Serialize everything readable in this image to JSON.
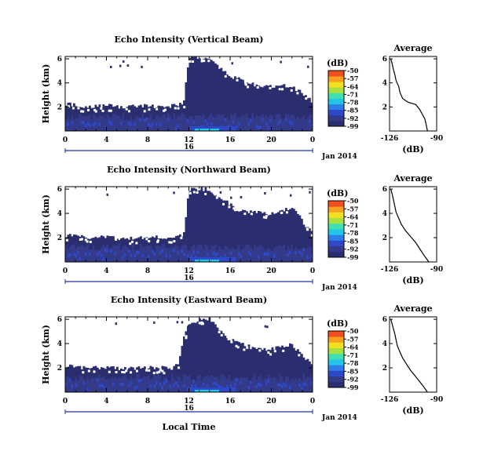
{
  "colors": {
    "background": "#ffffff",
    "axis": "#000000",
    "date_axis": "#2030a0",
    "colormap": [
      "#2a2e6e",
      "#343a8a",
      "#2f48c8",
      "#2e7ee8",
      "#22c6e8",
      "#40e0b0",
      "#a8e040",
      "#f0e020",
      "#f8a020",
      "#f05020"
    ]
  },
  "chart_data": [
    {
      "type": "heatmap",
      "title": "Echo Intensity (Vertical Beam)",
      "ylabel": "Height (km)",
      "xticks": [
        "0",
        "4",
        "8",
        "12",
        "16",
        "20",
        "0"
      ],
      "yticks": [
        "6",
        "4",
        "2"
      ],
      "xlim": [
        0,
        24
      ],
      "ylim": [
        0,
        6.2
      ],
      "date_label": "16",
      "month_label": "Jan 2014",
      "colorbar_unit": "(dB)",
      "colorbar_ticks": [
        "-50",
        "-57",
        "-64",
        "-71",
        "-78",
        "-85",
        "-92",
        "-99"
      ],
      "clim": [
        -99,
        -50
      ],
      "cloud_edge": {
        "t": [
          0,
          2,
          4,
          6,
          8,
          10,
          11.5,
          12,
          14,
          16,
          18,
          20,
          22,
          24
        ],
        "h": [
          2.3,
          2.0,
          2.1,
          2.0,
          2.1,
          2.0,
          2.3,
          6.0,
          6.0,
          4.6,
          3.9,
          3.7,
          3.8,
          2.4
        ]
      },
      "profile": {
        "title": "Average",
        "xlabel": "(dB)",
        "xticks": [
          "-126",
          "-90"
        ],
        "yticks": [
          "6",
          "4",
          "2"
        ],
        "xlim": [
          -126,
          -90
        ],
        "ylim": [
          0,
          6.2
        ],
        "x": [
          -125,
          -124,
          -123,
          -122,
          -121,
          -119,
          -118,
          -116,
          -112,
          -106,
          -103,
          -101,
          -99,
          -98,
          -97
        ],
        "y": [
          6.0,
          5.6,
          5.1,
          4.7,
          4.2,
          3.7,
          3.2,
          2.7,
          2.4,
          2.2,
          1.8,
          1.4,
          1.0,
          0.5,
          0.0
        ]
      }
    },
    {
      "type": "heatmap",
      "title": "Echo Intensity (Northward Beam)",
      "ylabel": "Height (km)",
      "xticks": [
        "0",
        "4",
        "8",
        "12",
        "16",
        "20",
        "0"
      ],
      "yticks": [
        "6",
        "4",
        "2"
      ],
      "xlim": [
        0,
        24
      ],
      "ylim": [
        0,
        6.2
      ],
      "date_label": "16",
      "month_label": "Jan 2014",
      "colorbar_unit": "(dB)",
      "colorbar_ticks": [
        "-50",
        "-57",
        "-64",
        "-71",
        "-78",
        "-85",
        "-92",
        "-99"
      ],
      "clim": [
        -99,
        -50
      ],
      "cloud_edge": {
        "t": [
          0,
          2,
          4,
          6,
          8,
          10,
          11.5,
          12,
          14,
          16,
          17,
          18,
          20,
          22,
          24
        ],
        "h": [
          2.2,
          2.0,
          2.1,
          1.9,
          2.1,
          2.0,
          2.2,
          6.0,
          6.0,
          4.7,
          4.2,
          4.1,
          4.0,
          4.5,
          2.3
        ]
      },
      "profile": {
        "title": "Average",
        "xlabel": "(dB)",
        "xticks": [
          "-126",
          "-90"
        ],
        "yticks": [
          "6",
          "4",
          "2"
        ],
        "xlim": [
          -126,
          -90
        ],
        "ylim": [
          0,
          6.2
        ],
        "x": [
          -125,
          -124,
          -123,
          -122,
          -121,
          -119,
          -117,
          -114,
          -110,
          -106,
          -103,
          -100,
          -98,
          -96
        ],
        "y": [
          6.0,
          5.6,
          5.1,
          4.6,
          4.1,
          3.6,
          3.1,
          2.6,
          2.1,
          1.6,
          1.1,
          0.6,
          0.3,
          0.0
        ]
      }
    },
    {
      "type": "heatmap",
      "title": "Echo Intensity (Eastward Beam)",
      "ylabel": "Height (km)",
      "xticks": [
        "0",
        "4",
        "8",
        "12",
        "16",
        "20",
        "0"
      ],
      "yticks": [
        "6",
        "4",
        "2"
      ],
      "xlim": [
        0,
        24
      ],
      "ylim": [
        0,
        6.2
      ],
      "date_label": "16",
      "month_label": "Jan 2014",
      "colorbar_unit": "(dB)",
      "colorbar_ticks": [
        "-50",
        "-57",
        "-64",
        "-71",
        "-78",
        "-85",
        "-92",
        "-99"
      ],
      "clim": [
        -99,
        -50
      ],
      "xlabel": "Local Time",
      "cloud_edge": {
        "t": [
          0,
          2,
          4,
          6,
          8,
          10,
          11,
          11.5,
          12,
          13,
          14,
          16,
          18,
          20,
          22,
          24
        ],
        "h": [
          2.2,
          2.0,
          2.0,
          1.9,
          2.0,
          2.0,
          2.4,
          4.6,
          5.5,
          6.0,
          6.0,
          4.3,
          3.7,
          3.5,
          3.9,
          2.2
        ]
      },
      "profile": {
        "title": "Average",
        "xlabel": "(dB)",
        "xticks": [
          "-126",
          "-90"
        ],
        "yticks": [
          "6",
          "4",
          "2"
        ],
        "xlim": [
          -126,
          -90
        ],
        "ylim": [
          0,
          6.2
        ],
        "x": [
          -125,
          -124,
          -123,
          -122,
          -121,
          -120,
          -118,
          -116,
          -113,
          -110,
          -107,
          -104,
          -101,
          -99,
          -97
        ],
        "y": [
          6.0,
          5.6,
          5.2,
          4.8,
          4.3,
          3.8,
          3.3,
          2.8,
          2.3,
          1.8,
          1.4,
          1.0,
          0.6,
          0.3,
          0.0
        ]
      }
    }
  ]
}
